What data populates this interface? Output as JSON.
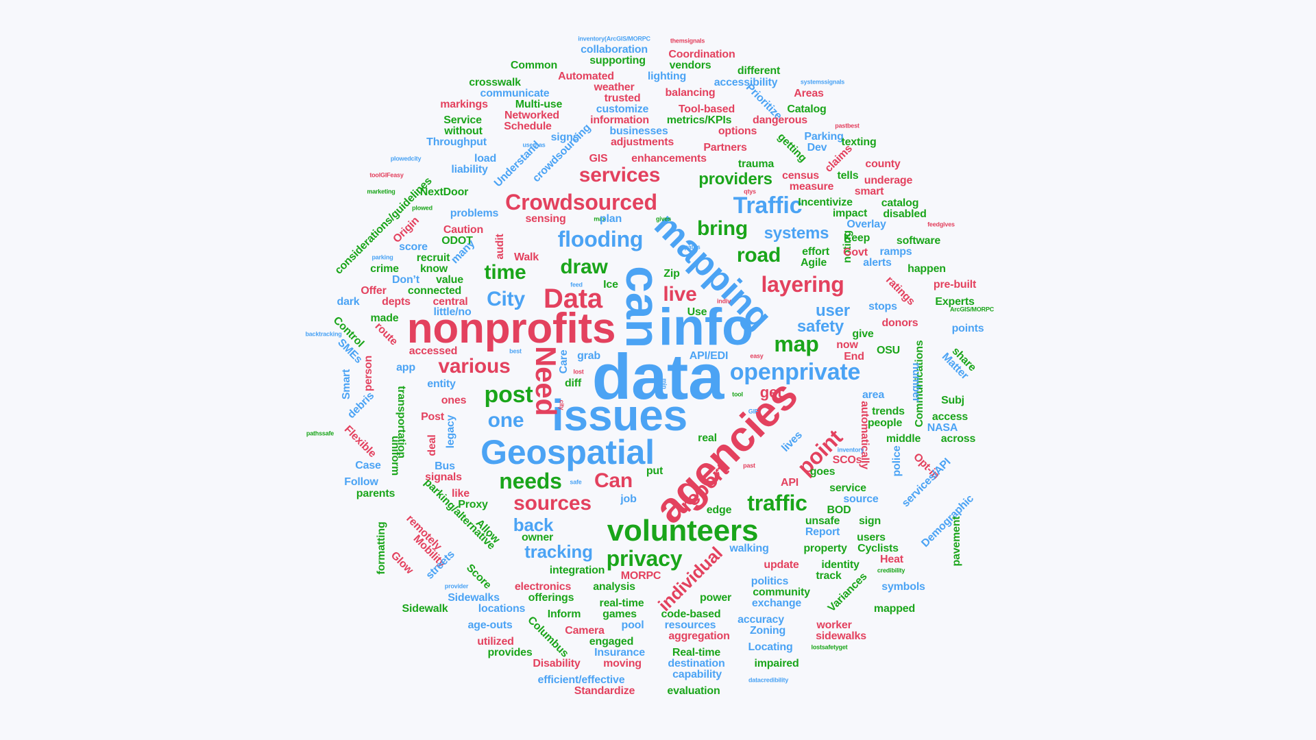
{
  "colors": {
    "red": "#e3415e",
    "blue": "#4ba3f4",
    "green": "#1aa51a",
    "background": "#f7f8fc"
  },
  "words": [
    {
      "text": "data",
      "color": "blue"
    },
    {
      "text": "issues",
      "color": "blue"
    },
    {
      "text": "info",
      "color": "blue"
    },
    {
      "text": "nonprofits",
      "color": "red"
    },
    {
      "text": "agencies",
      "color": "red"
    },
    {
      "text": "can",
      "color": "blue"
    },
    {
      "text": "Geospatial",
      "color": "blue"
    },
    {
      "text": "volunteers",
      "color": "green"
    },
    {
      "text": "mapping",
      "color": "blue"
    },
    {
      "text": "Data",
      "color": "red"
    },
    {
      "text": "Need",
      "color": "red"
    },
    {
      "text": "Crowdsourced",
      "color": "red"
    },
    {
      "text": "Traffic",
      "color": "blue"
    },
    {
      "text": "openprivate",
      "color": "blue"
    },
    {
      "text": "services",
      "color": "red"
    },
    {
      "text": "flooding",
      "color": "blue"
    },
    {
      "text": "layering",
      "color": "red"
    },
    {
      "text": "various",
      "color": "red"
    },
    {
      "text": "post",
      "color": "green"
    },
    {
      "text": "needs",
      "color": "green"
    },
    {
      "text": "sources",
      "color": "red"
    },
    {
      "text": "privacy",
      "color": "green"
    },
    {
      "text": "report",
      "color": "red"
    },
    {
      "text": "traffic",
      "color": "green"
    },
    {
      "text": "point",
      "color": "red"
    },
    {
      "text": "road",
      "color": "green"
    },
    {
      "text": "map",
      "color": "green"
    },
    {
      "text": "draw",
      "color": "green"
    },
    {
      "text": "time",
      "color": "green"
    },
    {
      "text": "City",
      "color": "blue"
    },
    {
      "text": "one",
      "color": "blue"
    },
    {
      "text": "Can",
      "color": "red"
    },
    {
      "text": "bring",
      "color": "green"
    },
    {
      "text": "live",
      "color": "red"
    },
    {
      "text": "tracking",
      "color": "blue"
    },
    {
      "text": "individual",
      "color": "red"
    },
    {
      "text": "back",
      "color": "blue"
    },
    {
      "text": "providers",
      "color": "green"
    },
    {
      "text": "systems",
      "color": "blue"
    },
    {
      "text": "user",
      "color": "blue"
    },
    {
      "text": "safety",
      "color": "blue"
    },
    {
      "text": "get",
      "color": "red"
    },
    {
      "text": "Data",
      "color": "red"
    },
    {
      "text": "inventory(ArcGIS/MORPC",
      "color": "blue"
    },
    {
      "text": "themsignals",
      "color": "red"
    },
    {
      "text": "collaboration",
      "color": "blue"
    },
    {
      "text": "Coordination",
      "color": "red"
    },
    {
      "text": "supporting",
      "color": "green"
    },
    {
      "text": "Common",
      "color": "green"
    },
    {
      "text": "vendors",
      "color": "green"
    },
    {
      "text": "Automated",
      "color": "red"
    },
    {
      "text": "lighting",
      "color": "blue"
    },
    {
      "text": "different",
      "color": "green"
    },
    {
      "text": "accessibility",
      "color": "blue"
    },
    {
      "text": "crosswalk",
      "color": "green"
    },
    {
      "text": "weather",
      "color": "red"
    },
    {
      "text": "balancing",
      "color": "red"
    },
    {
      "text": "systemssignals",
      "color": "blue"
    },
    {
      "text": "communicate",
      "color": "blue"
    },
    {
      "text": "trusted",
      "color": "red"
    },
    {
      "text": "Prioritize",
      "color": "blue"
    },
    {
      "text": "Areas",
      "color": "red"
    },
    {
      "text": "markings",
      "color": "red"
    },
    {
      "text": "Multi-use",
      "color": "green"
    },
    {
      "text": "customize",
      "color": "blue"
    },
    {
      "text": "Tool-based",
      "color": "red"
    },
    {
      "text": "Catalog",
      "color": "green"
    },
    {
      "text": "Networked",
      "color": "red"
    },
    {
      "text": "information",
      "color": "red"
    },
    {
      "text": "metrics/KPIs",
      "color": "green"
    },
    {
      "text": "dangerous",
      "color": "red"
    },
    {
      "text": "pastbest",
      "color": "red"
    },
    {
      "text": "Service",
      "color": "green"
    },
    {
      "text": "Schedule",
      "color": "red"
    },
    {
      "text": "businesses",
      "color": "blue"
    },
    {
      "text": "options",
      "color": "red"
    },
    {
      "text": "without",
      "color": "green"
    },
    {
      "text": "signs",
      "color": "blue"
    },
    {
      "text": "adjustments",
      "color": "red"
    },
    {
      "text": "getting",
      "color": "green"
    },
    {
      "text": "Parking",
      "color": "blue"
    },
    {
      "text": "texting",
      "color": "green"
    },
    {
      "text": "Throughput",
      "color": "blue"
    },
    {
      "text": "Partners",
      "color": "red"
    },
    {
      "text": "Dev",
      "color": "blue"
    },
    {
      "text": "userhas",
      "color": "blue"
    },
    {
      "text": "plowedcity",
      "color": "blue"
    },
    {
      "text": "load",
      "color": "blue"
    },
    {
      "text": "GIS",
      "color": "red"
    },
    {
      "text": "enhancements",
      "color": "red"
    },
    {
      "text": "claims",
      "color": "red"
    },
    {
      "text": "liability",
      "color": "blue"
    },
    {
      "text": "crowdsourcing",
      "color": "blue"
    },
    {
      "text": "trauma",
      "color": "green"
    },
    {
      "text": "county",
      "color": "red"
    },
    {
      "text": "toolGIFeasy",
      "color": "red"
    },
    {
      "text": "Understand",
      "color": "blue"
    },
    {
      "text": "census",
      "color": "red"
    },
    {
      "text": "tells",
      "color": "green"
    },
    {
      "text": "underage",
      "color": "red"
    },
    {
      "text": "marketing",
      "color": "green"
    },
    {
      "text": "qtys",
      "color": "red"
    },
    {
      "text": "NextDoor",
      "color": "green"
    },
    {
      "text": "measure",
      "color": "red"
    },
    {
      "text": "smart",
      "color": "red"
    },
    {
      "text": "considerations/guidelines",
      "color": "green"
    },
    {
      "text": "plowed",
      "color": "green"
    },
    {
      "text": "problems",
      "color": "blue"
    },
    {
      "text": "Incentivize",
      "color": "green"
    },
    {
      "text": "catalog",
      "color": "green"
    },
    {
      "text": "gives",
      "color": "green"
    },
    {
      "text": "impact",
      "color": "green"
    },
    {
      "text": "disabled",
      "color": "green"
    },
    {
      "text": "Origin",
      "color": "red"
    },
    {
      "text": "sensing",
      "color": "red"
    },
    {
      "text": "max",
      "color": "green"
    },
    {
      "text": "plan",
      "color": "blue"
    },
    {
      "text": "Overlay",
      "color": "blue"
    },
    {
      "text": "feedgives",
      "color": "red"
    },
    {
      "text": "Caution",
      "color": "red"
    },
    {
      "text": "ODOT",
      "color": "green"
    },
    {
      "text": "Keep",
      "color": "green"
    },
    {
      "text": "software",
      "color": "green"
    },
    {
      "text": "score",
      "color": "blue"
    },
    {
      "text": "many",
      "color": "blue"
    },
    {
      "text": "paths",
      "color": "blue"
    },
    {
      "text": "noting",
      "color": "green"
    },
    {
      "text": "effort",
      "color": "green"
    },
    {
      "text": "ramps",
      "color": "blue"
    },
    {
      "text": "parking",
      "color": "blue"
    },
    {
      "text": "recruit",
      "color": "green"
    },
    {
      "text": "audit",
      "color": "red"
    },
    {
      "text": "Walk",
      "color": "red"
    },
    {
      "text": "Govt",
      "color": "red"
    },
    {
      "text": "crime",
      "color": "green"
    },
    {
      "text": "know",
      "color": "green"
    },
    {
      "text": "Agile",
      "color": "green"
    },
    {
      "text": "alerts",
      "color": "blue"
    },
    {
      "text": "happen",
      "color": "green"
    },
    {
      "text": "Zip",
      "color": "green"
    },
    {
      "text": "Don’t",
      "color": "blue"
    },
    {
      "text": "value",
      "color": "green"
    },
    {
      "text": "Ice",
      "color": "green"
    },
    {
      "text": "ratings",
      "color": "red"
    },
    {
      "text": "pre-built",
      "color": "red"
    },
    {
      "text": "Offer",
      "color": "red"
    },
    {
      "text": "connected",
      "color": "green"
    },
    {
      "text": "feed",
      "color": "blue"
    },
    {
      "text": "dark",
      "color": "blue"
    },
    {
      "text": "depts",
      "color": "red"
    },
    {
      "text": "central",
      "color": "red"
    },
    {
      "text": "indiv",
      "color": "red"
    },
    {
      "text": "Experts",
      "color": "green"
    },
    {
      "text": "little/no",
      "color": "blue"
    },
    {
      "text": "Use",
      "color": "green"
    },
    {
      "text": "stops",
      "color": "blue"
    },
    {
      "text": "ArcGIS/MORPC",
      "color": "green"
    },
    {
      "text": "Control",
      "color": "green"
    },
    {
      "text": "made",
      "color": "green"
    },
    {
      "text": "donors",
      "color": "red"
    },
    {
      "text": "points",
      "color": "blue"
    },
    {
      "text": "backtracking",
      "color": "blue"
    },
    {
      "text": "route",
      "color": "red"
    },
    {
      "text": "give",
      "color": "green"
    },
    {
      "text": "SMEs",
      "color": "blue"
    },
    {
      "text": "accessed",
      "color": "red"
    },
    {
      "text": "best",
      "color": "blue"
    },
    {
      "text": "grab",
      "color": "blue"
    },
    {
      "text": "now",
      "color": "red"
    },
    {
      "text": "OSU",
      "color": "green"
    },
    {
      "text": "Communications",
      "color": "green"
    },
    {
      "text": "share",
      "color": "green"
    },
    {
      "text": "person",
      "color": "red"
    },
    {
      "text": "API/EDI",
      "color": "blue"
    },
    {
      "text": "End",
      "color": "red"
    },
    {
      "text": "Matter",
      "color": "blue"
    },
    {
      "text": "app",
      "color": "blue"
    },
    {
      "text": "Care",
      "color": "blue"
    },
    {
      "text": "lost",
      "color": "red"
    },
    {
      "text": "easy",
      "color": "red"
    },
    {
      "text": "number",
      "color": "blue"
    },
    {
      "text": "Smart",
      "color": "blue"
    },
    {
      "text": "entity",
      "color": "blue"
    },
    {
      "text": "diff",
      "color": "green"
    },
    {
      "text": "min",
      "color": "blue"
    },
    {
      "text": "area",
      "color": "blue"
    },
    {
      "text": "transportation",
      "color": "green"
    },
    {
      "text": "ones",
      "color": "red"
    },
    {
      "text": "debris",
      "color": "blue"
    },
    {
      "text": "tool",
      "color": "green"
    },
    {
      "text": "trends",
      "color": "green"
    },
    {
      "text": "Subj",
      "color": "green"
    },
    {
      "text": "city",
      "color": "red"
    },
    {
      "text": "GIF",
      "color": "blue"
    },
    {
      "text": "access",
      "color": "green"
    },
    {
      "text": "Post",
      "color": "red"
    },
    {
      "text": "people",
      "color": "green"
    },
    {
      "text": "pathssafe",
      "color": "green"
    },
    {
      "text": "legacy",
      "color": "blue"
    },
    {
      "text": "NASA",
      "color": "blue"
    },
    {
      "text": "Flexible",
      "color": "red"
    },
    {
      "text": "automatically",
      "color": "red"
    },
    {
      "text": "middle",
      "color": "green"
    },
    {
      "text": "across",
      "color": "green"
    },
    {
      "text": "deal",
      "color": "red"
    },
    {
      "text": "real",
      "color": "green"
    },
    {
      "text": "lives",
      "color": "blue"
    },
    {
      "text": "uniform",
      "color": "green"
    },
    {
      "text": "inventory",
      "color": "blue"
    },
    {
      "text": "police",
      "color": "blue"
    },
    {
      "text": "Case",
      "color": "blue"
    },
    {
      "text": "Bus",
      "color": "blue"
    },
    {
      "text": "past",
      "color": "red"
    },
    {
      "text": "SCOs",
      "color": "red"
    },
    {
      "text": "Opt-in",
      "color": "red"
    },
    {
      "text": "signals",
      "color": "red"
    },
    {
      "text": "put",
      "color": "green"
    },
    {
      "text": "goes",
      "color": "green"
    },
    {
      "text": "services/API",
      "color": "blue"
    },
    {
      "text": "Follow",
      "color": "blue"
    },
    {
      "text": "safe",
      "color": "blue"
    },
    {
      "text": "API",
      "color": "red"
    },
    {
      "text": "service",
      "color": "green"
    },
    {
      "text": "like",
      "color": "red"
    },
    {
      "text": "source",
      "color": "blue"
    },
    {
      "text": "parents",
      "color": "green"
    },
    {
      "text": "parking/alternative",
      "color": "green"
    },
    {
      "text": "job",
      "color": "blue"
    },
    {
      "text": "BOD",
      "color": "green"
    },
    {
      "text": "Proxy",
      "color": "green"
    },
    {
      "text": "edge",
      "color": "green"
    },
    {
      "text": "Demographic",
      "color": "blue"
    },
    {
      "text": "unsafe",
      "color": "green"
    },
    {
      "text": "sign",
      "color": "green"
    },
    {
      "text": "remotely",
      "color": "red"
    },
    {
      "text": "Allow",
      "color": "green"
    },
    {
      "text": "formatting",
      "color": "green"
    },
    {
      "text": "owner",
      "color": "green"
    },
    {
      "text": "Report",
      "color": "blue"
    },
    {
      "text": "users",
      "color": "green"
    },
    {
      "text": "pavement",
      "color": "green"
    },
    {
      "text": "Mobility",
      "color": "red"
    },
    {
      "text": "walking",
      "color": "blue"
    },
    {
      "text": "property",
      "color": "green"
    },
    {
      "text": "Cyclists",
      "color": "green"
    },
    {
      "text": "Heat",
      "color": "red"
    },
    {
      "text": "Glow",
      "color": "red"
    },
    {
      "text": "streets",
      "color": "blue"
    },
    {
      "text": "update",
      "color": "red"
    },
    {
      "text": "identity",
      "color": "green"
    },
    {
      "text": "integration",
      "color": "green"
    },
    {
      "text": "MORPC",
      "color": "red"
    },
    {
      "text": "track",
      "color": "green"
    },
    {
      "text": "credibility",
      "color": "green"
    },
    {
      "text": "Score",
      "color": "green"
    },
    {
      "text": "politics",
      "color": "blue"
    },
    {
      "text": "symbols",
      "color": "blue"
    },
    {
      "text": "electronics",
      "color": "red"
    },
    {
      "text": "analysis",
      "color": "green"
    },
    {
      "text": "community",
      "color": "green"
    },
    {
      "text": "Variances",
      "color": "green"
    },
    {
      "text": "provider",
      "color": "blue"
    },
    {
      "text": "Sidewalks",
      "color": "blue"
    },
    {
      "text": "offerings",
      "color": "green"
    },
    {
      "text": "power",
      "color": "green"
    },
    {
      "text": "exchange",
      "color": "blue"
    },
    {
      "text": "Sidewalk",
      "color": "green"
    },
    {
      "text": "locations",
      "color": "blue"
    },
    {
      "text": "real-time",
      "color": "green"
    },
    {
      "text": "mapped",
      "color": "green"
    },
    {
      "text": "Inform",
      "color": "green"
    },
    {
      "text": "games",
      "color": "green"
    },
    {
      "text": "code-based",
      "color": "green"
    },
    {
      "text": "accuracy",
      "color": "blue"
    },
    {
      "text": "age-outs",
      "color": "blue"
    },
    {
      "text": "Camera",
      "color": "red"
    },
    {
      "text": "pool",
      "color": "blue"
    },
    {
      "text": "resources",
      "color": "blue"
    },
    {
      "text": "worker",
      "color": "red"
    },
    {
      "text": "Zoning",
      "color": "blue"
    },
    {
      "text": "utilized",
      "color": "red"
    },
    {
      "text": "Columbus",
      "color": "green"
    },
    {
      "text": "engaged",
      "color": "green"
    },
    {
      "text": "aggregation",
      "color": "red"
    },
    {
      "text": "sidewalks",
      "color": "red"
    },
    {
      "text": "provides",
      "color": "green"
    },
    {
      "text": "Insurance",
      "color": "blue"
    },
    {
      "text": "Real-time",
      "color": "green"
    },
    {
      "text": "Locating",
      "color": "blue"
    },
    {
      "text": "lostsafetyget",
      "color": "green"
    },
    {
      "text": "Disability",
      "color": "red"
    },
    {
      "text": "moving",
      "color": "red"
    },
    {
      "text": "destination",
      "color": "blue"
    },
    {
      "text": "impaired",
      "color": "green"
    },
    {
      "text": "efficient/effective",
      "color": "blue"
    },
    {
      "text": "capability",
      "color": "blue"
    },
    {
      "text": "datacredibility",
      "color": "blue"
    },
    {
      "text": "Standardize",
      "color": "red"
    },
    {
      "text": "evaluation",
      "color": "green"
    }
  ]
}
